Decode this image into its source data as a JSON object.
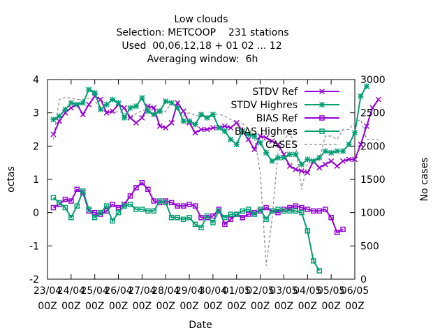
{
  "chart_data": {
    "type": "line",
    "title": [
      "Low clouds",
      "Selection: METCOOP    231 stations",
      "Used  00,06,12,18 + 01 02 ... 12",
      "Averaging window:  6h"
    ],
    "xlabel": "Date",
    "ylabel": "octas",
    "y2label": "No cases",
    "ylim": [
      -2,
      4
    ],
    "y2lim": [
      0,
      3000
    ],
    "yticks": [
      "-2",
      "-1",
      "0",
      "1",
      "2",
      "3",
      "4"
    ],
    "y2ticks": [
      "0",
      "500",
      "1000",
      "1500",
      "2000",
      "2500",
      "3000"
    ],
    "xticks": [
      {
        "date": "23/04",
        "hour": "00Z"
      },
      {
        "date": "24/04",
        "hour": "00Z"
      },
      {
        "date": "25/04",
        "hour": "00Z"
      },
      {
        "date": "26/04",
        "hour": "00Z"
      },
      {
        "date": "27/04",
        "hour": "00Z"
      },
      {
        "date": "28/04",
        "hour": "00Z"
      },
      {
        "date": "29/04",
        "hour": "00Z"
      },
      {
        "date": "30/04",
        "hour": "00Z"
      },
      {
        "date": "01/05",
        "hour": "00Z"
      },
      {
        "date": "02/05",
        "hour": "00Z"
      },
      {
        "date": "03/05",
        "hour": "00Z"
      },
      {
        "date": "04/05",
        "hour": "00Z"
      },
      {
        "date": "05/05",
        "hour": "00Z"
      },
      {
        "date": "06/05",
        "hour": "00Z"
      }
    ],
    "x_time_step_hours": 6,
    "legend_position": "top-right",
    "grid": false,
    "series": [
      {
        "name": "STDV Ref",
        "color": "#9400d3",
        "marker": "x",
        "axis": "y",
        "values": [
          2.35,
          2.75,
          3.0,
          3.15,
          3.25,
          2.95,
          3.25,
          3.5,
          3.4,
          3.0,
          3.05,
          3.25,
          3.15,
          2.85,
          2.7,
          2.85,
          3.2,
          3.15,
          2.6,
          2.55,
          2.7,
          3.3,
          3.05,
          2.7,
          2.4,
          2.5,
          2.5,
          2.55,
          2.55,
          2.6,
          2.55,
          2.7,
          2.45,
          2.2,
          1.9,
          2.3,
          2.25,
          2.15,
          2.05,
          1.75,
          1.4,
          1.3,
          1.25,
          1.2,
          1.55,
          1.35,
          1.45,
          1.55,
          1.4,
          1.55,
          1.6,
          1.6,
          2.05,
          2.6,
          3.15,
          3.4
        ]
      },
      {
        "name": "STDV Highres",
        "color": "#009e73",
        "marker": "star",
        "axis": "y",
        "values": [
          2.8,
          2.9,
          3.1,
          3.3,
          3.25,
          3.3,
          3.7,
          3.6,
          3.1,
          3.25,
          3.4,
          3.3,
          2.85,
          3.15,
          3.2,
          3.45,
          3.05,
          2.95,
          3.05,
          3.35,
          3.3,
          3.15,
          2.75,
          2.75,
          2.65,
          2.95,
          2.85,
          2.95,
          2.55,
          2.45,
          2.2,
          2.05,
          2.45,
          2.35,
          2.3,
          2.1,
          1.8,
          1.55,
          1.65,
          1.65,
          1.75,
          1.75,
          1.45,
          1.6,
          1.55,
          1.65,
          1.85,
          1.8,
          1.85,
          1.85,
          2.05,
          2.4,
          3.5,
          3.8
        ]
      },
      {
        "name": "BIAS Ref",
        "color": "#9400d3",
        "marker": "square",
        "axis": "y",
        "values": [
          0.15,
          0.25,
          0.4,
          0.35,
          0.7,
          0.6,
          0.05,
          0.0,
          -0.05,
          0.05,
          0.25,
          0.15,
          0.25,
          0.5,
          0.75,
          0.9,
          0.7,
          0.35,
          0.3,
          0.35,
          0.3,
          0.2,
          0.2,
          0.25,
          0.2,
          -0.15,
          -0.15,
          -0.1,
          0.1,
          -0.35,
          -0.2,
          -0.05,
          -0.15,
          -0.05,
          0.0,
          0.05,
          0.15,
          0.05,
          0.0,
          0.1,
          0.15,
          0.2,
          0.15,
          0.1,
          0.05,
          0.05,
          0.1,
          -0.15,
          -0.6,
          -0.5
        ]
      },
      {
        "name": "BIAS Highres",
        "color": "#009e73",
        "marker": "square",
        "axis": "y",
        "values": [
          0.45,
          0.3,
          0.15,
          -0.15,
          0.2,
          0.65,
          0.1,
          -0.15,
          0.0,
          0.2,
          -0.25,
          0.0,
          0.2,
          0.25,
          0.1,
          0.1,
          0.05,
          0.05,
          0.35,
          0.3,
          -0.15,
          -0.15,
          -0.2,
          -0.15,
          -0.35,
          -0.45,
          -0.1,
          -0.3,
          0.05,
          -0.15,
          -0.05,
          -0.05,
          0.05,
          0.1,
          -0.05,
          0.1,
          -0.2,
          0.05,
          0.1,
          0.05,
          0.05,
          0.05,
          0.0,
          -0.55,
          -1.45,
          -1.75
        ]
      },
      {
        "name": "CASES",
        "color": "#999999",
        "marker": "none",
        "dash": true,
        "axis": "y2",
        "values": [
          2100,
          2700,
          2730,
          2720,
          2700,
          2700,
          2720,
          2680,
          2550,
          2520,
          2500,
          2520,
          2500,
          2400,
          2490,
          2530,
          2560,
          2590,
          2500,
          2520,
          2650,
          2560,
          2450,
          2500,
          2460,
          2450,
          2440,
          2480,
          2480,
          2450,
          2400,
          2350,
          2340,
          2260,
          2150,
          1600,
          200,
          900,
          1900,
          2100,
          2200,
          2000,
          1350,
          1750,
          1750,
          1800,
          2150,
          2150,
          2100,
          2250,
          2250,
          2350,
          2400,
          2100,
          2100,
          2100
        ]
      }
    ]
  }
}
